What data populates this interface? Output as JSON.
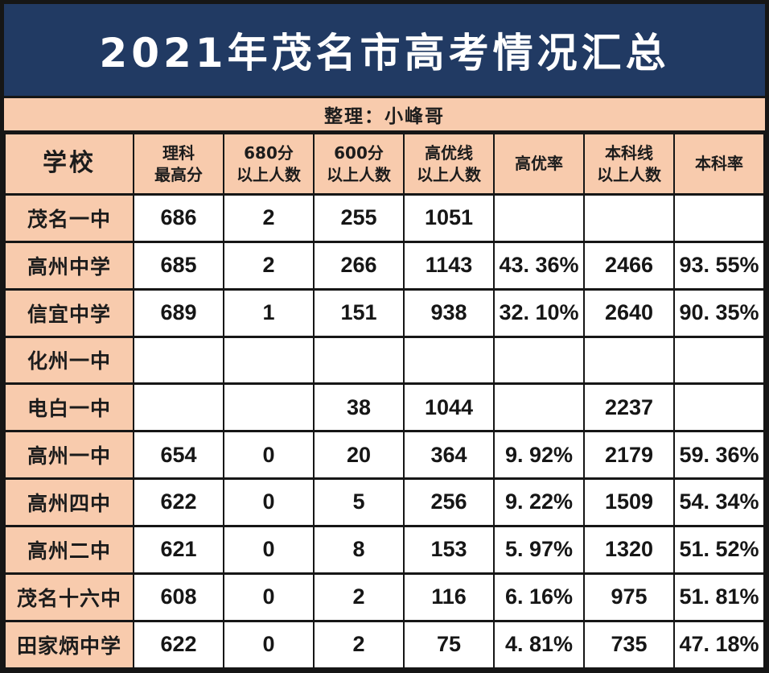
{
  "title": "2021年茂名市高考情况汇总",
  "subtitle": "整理：小峰哥",
  "colors": {
    "title_bg": "#213a63",
    "title_text": "#ffffff",
    "accent_bg": "#f8cbad",
    "border": "#161616",
    "cell_bg": "#ffffff",
    "cell_text": "#161616"
  },
  "chart_data": {
    "type": "table",
    "title": "2021年茂名市高考情况汇总",
    "subtitle": "整理：小峰哥",
    "columns_full": [
      "学校",
      "理科最高分",
      "680分以上人数",
      "600分以上人数",
      "高优线以上人数",
      "高优率",
      "本科线以上人数",
      "本科率"
    ],
    "columns_line1": [
      "学校",
      "理科",
      "680分",
      "600分",
      "高优线",
      "高优率",
      "本科线",
      "本科率"
    ],
    "columns_line2": [
      "",
      "最高分",
      "以上人数",
      "以上人数",
      "以上人数",
      "",
      "以上人数",
      ""
    ],
    "rows": [
      [
        "茂名一中",
        "686",
        "2",
        "255",
        "1051",
        "",
        "",
        ""
      ],
      [
        "高州中学",
        "685",
        "2",
        "266",
        "1143",
        "43. 36%",
        "2466",
        "93. 55%"
      ],
      [
        "信宜中学",
        "689",
        "1",
        "151",
        "938",
        "32. 10%",
        "2640",
        "90. 35%"
      ],
      [
        "化州一中",
        "",
        "",
        "",
        "",
        "",
        "",
        ""
      ],
      [
        "电白一中",
        "",
        "",
        "38",
        "1044",
        "",
        "2237",
        ""
      ],
      [
        "高州一中",
        "654",
        "0",
        "20",
        "364",
        "9. 92%",
        "2179",
        "59. 36%"
      ],
      [
        "高州四中",
        "622",
        "0",
        "5",
        "256",
        "9. 22%",
        "1509",
        "54. 34%"
      ],
      [
        "高州二中",
        "621",
        "0",
        "8",
        "153",
        "5. 97%",
        "1320",
        "51. 52%"
      ],
      [
        "茂名十六中",
        "608",
        "0",
        "2",
        "116",
        "6. 16%",
        "975",
        "51. 81%"
      ],
      [
        "田家炳中学",
        "622",
        "0",
        "2",
        "75",
        "4. 81%",
        "735",
        "47. 18%"
      ]
    ]
  }
}
